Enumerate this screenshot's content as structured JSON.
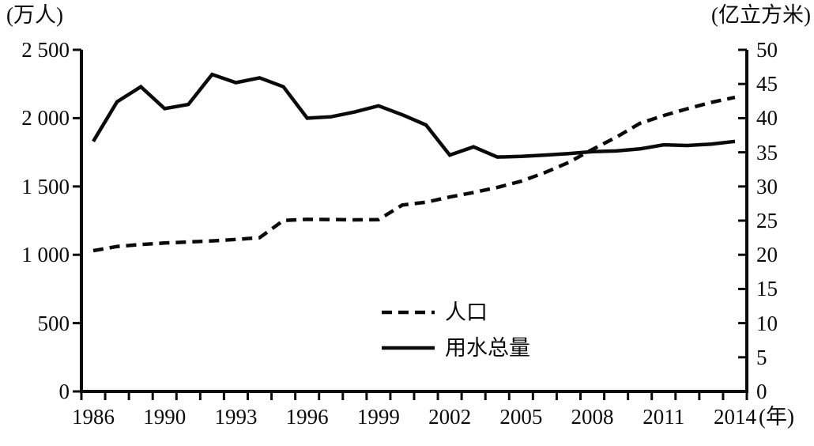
{
  "figure": {
    "left_axis_title": "(万人)",
    "right_axis_title": "(亿立方米)",
    "x_axis_unit": "(年)",
    "background": "#ffffff",
    "line_color": "#0a0a0a"
  },
  "legend": {
    "items": [
      {
        "label": "人口",
        "style": "dashed"
      },
      {
        "label": "用水总量",
        "style": "solid"
      }
    ]
  },
  "chart_data": {
    "type": "line",
    "title": "",
    "x": [
      1986,
      1988,
      1989,
      1990,
      1991,
      1992,
      1993,
      1994,
      1995,
      1996,
      1997,
      1998,
      1999,
      2000,
      2001,
      2002,
      2003,
      2004,
      2005,
      2006,
      2007,
      2008,
      2009,
      2010,
      2011,
      2012,
      2013,
      2014
    ],
    "x_tick_labels": [
      {
        "text": "1986",
        "i": 0
      },
      {
        "text": "1990",
        "i": 3
      },
      {
        "text": "1993",
        "i": 6
      },
      {
        "text": "1996",
        "i": 9
      },
      {
        "text": "1999",
        "i": 12
      },
      {
        "text": "2002",
        "i": 15
      },
      {
        "text": "2005",
        "i": 18
      },
      {
        "text": "2008",
        "i": 21
      },
      {
        "text": "2011",
        "i": 24
      },
      {
        "text": "2014",
        "i": 27
      }
    ],
    "left_axis": {
      "title": "(万人)",
      "range": [
        0,
        2500
      ],
      "tick_step": 500,
      "tick_values": [
        0,
        500,
        1000,
        1500,
        2000,
        2500
      ],
      "tick_labels": [
        "0",
        "500",
        "1 000",
        "1 500",
        "2 000",
        "2 500"
      ]
    },
    "right_axis": {
      "title": "(亿立方米)",
      "range": [
        0,
        50
      ],
      "tick_step": 5,
      "tick_values": [
        0,
        5,
        10,
        15,
        20,
        25,
        30,
        35,
        40,
        45,
        50
      ],
      "tick_labels": [
        "0",
        "5",
        "10",
        "15",
        "20",
        "25",
        "30",
        "35",
        "40",
        "45",
        "50"
      ]
    },
    "grid": false,
    "legend_position": "inside-lower-middle",
    "series": [
      {
        "name": "人口",
        "axis": "left",
        "unit": "万人",
        "line_style": "dashed",
        "values": [
          1030,
          1061,
          1075,
          1086,
          1094,
          1102,
          1112,
          1125,
          1251,
          1259,
          1258,
          1256,
          1257,
          1364,
          1385,
          1423,
          1456,
          1493,
          1538,
          1601,
          1676,
          1771,
          1860,
          1962,
          2019,
          2069,
          2115,
          2152
        ]
      },
      {
        "name": "用水总量",
        "axis": "right",
        "unit": "亿立方米",
        "line_style": "solid",
        "values": [
          36.6,
          42.4,
          44.6,
          41.4,
          42.0,
          46.4,
          45.2,
          45.9,
          44.6,
          40.0,
          40.2,
          40.9,
          41.8,
          40.5,
          39.0,
          34.6,
          35.8,
          34.3,
          34.4,
          34.6,
          34.8,
          35.1,
          35.2,
          35.5,
          36.1,
          36.0,
          36.2,
          36.6
        ]
      }
    ]
  }
}
